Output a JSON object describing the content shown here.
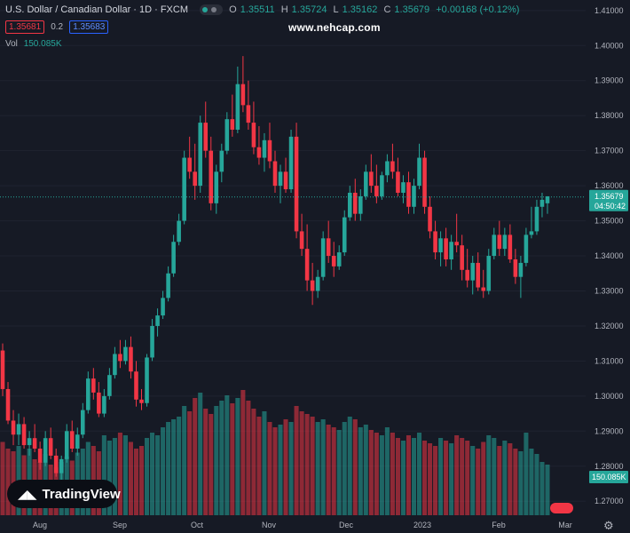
{
  "header": {
    "symbol": "U.S. Dollar / Canadian Dollar · 1D · FXCM",
    "o_label": "O",
    "o": "1.35511",
    "h_label": "H",
    "h": "1.35724",
    "l_label": "L",
    "l": "1.35162",
    "c_label": "C",
    "c": "1.35679",
    "change": "+0.00168 (+0.12%)",
    "bid": "1.35681",
    "spread": "0.2",
    "ask": "1.35683"
  },
  "volume_legend": {
    "label": "Vol",
    "value": "150.085K"
  },
  "watermark": "www.nehcap.com",
  "logo": "TradingView",
  "colors": {
    "up": "#26a69a",
    "down": "#f23645",
    "background": "#161a25",
    "text": "#b2b5be"
  },
  "chart_data": {
    "type": "candlestick",
    "y_ticks": [
      "1.41000",
      "1.40000",
      "1.39000",
      "1.38000",
      "1.37000",
      "1.36000",
      "1.35000",
      "1.34000",
      "1.33000",
      "1.32000",
      "1.31000",
      "1.30000",
      "1.29000",
      "1.28000",
      "1.27000"
    ],
    "ylim": [
      1.266,
      1.413
    ],
    "x_ticks": [
      "Aug",
      "Sep",
      "Oct",
      "Nov",
      "Dec",
      "2023",
      "Feb",
      "Mar"
    ],
    "current_price": "1.35679",
    "countdown": "04:50:42",
    "volume_label": "150.085K",
    "candles": [
      [
        1.313,
        1.315,
        1.3,
        1.302
      ],
      [
        1.302,
        1.304,
        1.292,
        1.293
      ],
      [
        1.293,
        1.296,
        1.286,
        1.289
      ],
      [
        1.289,
        1.295,
        1.286,
        1.292
      ],
      [
        1.292,
        1.294,
        1.285,
        1.286
      ],
      [
        1.286,
        1.29,
        1.283,
        1.288
      ],
      [
        1.288,
        1.292,
        1.284,
        1.285
      ],
      [
        1.285,
        1.287,
        1.279,
        1.281
      ],
      [
        1.281,
        1.29,
        1.28,
        1.288
      ],
      [
        1.288,
        1.291,
        1.282,
        1.283
      ],
      [
        1.283,
        1.285,
        1.277,
        1.278
      ],
      [
        1.278,
        1.283,
        1.276,
        1.282
      ],
      [
        1.282,
        1.292,
        1.281,
        1.29
      ],
      [
        1.29,
        1.293,
        1.284,
        1.285
      ],
      [
        1.285,
        1.291,
        1.283,
        1.289
      ],
      [
        1.289,
        1.298,
        1.288,
        1.296
      ],
      [
        1.296,
        1.307,
        1.295,
        1.305
      ],
      [
        1.305,
        1.308,
        1.299,
        1.301
      ],
      [
        1.301,
        1.304,
        1.294,
        1.295
      ],
      [
        1.295,
        1.302,
        1.294,
        1.3
      ],
      [
        1.3,
        1.308,
        1.299,
        1.306
      ],
      [
        1.306,
        1.314,
        1.305,
        1.312
      ],
      [
        1.312,
        1.316,
        1.308,
        1.31
      ],
      [
        1.31,
        1.316,
        1.309,
        1.314
      ],
      [
        1.314,
        1.317,
        1.305,
        1.307
      ],
      [
        1.307,
        1.31,
        1.297,
        1.299
      ],
      [
        1.299,
        1.302,
        1.296,
        1.298
      ],
      [
        1.298,
        1.312,
        1.297,
        1.311
      ],
      [
        1.311,
        1.322,
        1.31,
        1.32
      ],
      [
        1.32,
        1.325,
        1.317,
        1.323
      ],
      [
        1.323,
        1.33,
        1.322,
        1.328
      ],
      [
        1.328,
        1.337,
        1.327,
        1.335
      ],
      [
        1.335,
        1.346,
        1.334,
        1.344
      ],
      [
        1.344,
        1.352,
        1.343,
        1.35
      ],
      [
        1.35,
        1.37,
        1.349,
        1.368
      ],
      [
        1.368,
        1.374,
        1.362,
        1.364
      ],
      [
        1.364,
        1.372,
        1.356,
        1.36
      ],
      [
        1.36,
        1.38,
        1.358,
        1.378
      ],
      [
        1.378,
        1.384,
        1.368,
        1.37
      ],
      [
        1.37,
        1.374,
        1.353,
        1.355
      ],
      [
        1.355,
        1.366,
        1.352,
        1.364
      ],
      [
        1.364,
        1.372,
        1.361,
        1.37
      ],
      [
        1.37,
        1.381,
        1.369,
        1.379
      ],
      [
        1.379,
        1.386,
        1.374,
        1.376
      ],
      [
        1.376,
        1.394,
        1.375,
        1.389
      ],
      [
        1.389,
        1.397,
        1.381,
        1.383
      ],
      [
        1.383,
        1.39,
        1.376,
        1.378
      ],
      [
        1.378,
        1.384,
        1.369,
        1.371
      ],
      [
        1.371,
        1.377,
        1.366,
        1.368
      ],
      [
        1.368,
        1.375,
        1.364,
        1.373
      ],
      [
        1.373,
        1.378,
        1.365,
        1.367
      ],
      [
        1.367,
        1.37,
        1.358,
        1.36
      ],
      [
        1.36,
        1.366,
        1.355,
        1.364
      ],
      [
        1.364,
        1.368,
        1.358,
        1.359
      ],
      [
        1.359,
        1.376,
        1.358,
        1.374
      ],
      [
        1.374,
        1.378,
        1.345,
        1.347
      ],
      [
        1.347,
        1.352,
        1.34,
        1.342
      ],
      [
        1.342,
        1.349,
        1.33,
        1.333
      ],
      [
        1.333,
        1.338,
        1.326,
        1.33
      ],
      [
        1.33,
        1.336,
        1.328,
        1.334
      ],
      [
        1.334,
        1.347,
        1.333,
        1.345
      ],
      [
        1.345,
        1.35,
        1.338,
        1.34
      ],
      [
        1.34,
        1.344,
        1.334,
        1.337
      ],
      [
        1.337,
        1.343,
        1.336,
        1.341
      ],
      [
        1.341,
        1.353,
        1.34,
        1.351
      ],
      [
        1.351,
        1.36,
        1.35,
        1.358
      ],
      [
        1.358,
        1.362,
        1.35,
        1.352
      ],
      [
        1.352,
        1.359,
        1.35,
        1.357
      ],
      [
        1.357,
        1.366,
        1.356,
        1.364
      ],
      [
        1.364,
        1.369,
        1.358,
        1.36
      ],
      [
        1.36,
        1.366,
        1.355,
        1.357
      ],
      [
        1.357,
        1.364,
        1.356,
        1.363
      ],
      [
        1.363,
        1.369,
        1.361,
        1.367
      ],
      [
        1.367,
        1.372,
        1.362,
        1.364
      ],
      [
        1.364,
        1.368,
        1.357,
        1.358
      ],
      [
        1.358,
        1.363,
        1.355,
        1.361
      ],
      [
        1.361,
        1.364,
        1.352,
        1.354
      ],
      [
        1.354,
        1.362,
        1.352,
        1.36
      ],
      [
        1.36,
        1.372,
        1.359,
        1.368
      ],
      [
        1.368,
        1.37,
        1.352,
        1.354
      ],
      [
        1.354,
        1.357,
        1.345,
        1.347
      ],
      [
        1.347,
        1.35,
        1.339,
        1.341
      ],
      [
        1.341,
        1.347,
        1.337,
        1.345
      ],
      [
        1.345,
        1.348,
        1.337,
        1.339
      ],
      [
        1.339,
        1.346,
        1.336,
        1.344
      ],
      [
        1.344,
        1.352,
        1.341,
        1.343
      ],
      [
        1.343,
        1.346,
        1.333,
        1.336
      ],
      [
        1.336,
        1.342,
        1.331,
        1.333
      ],
      [
        1.333,
        1.34,
        1.329,
        1.338
      ],
      [
        1.338,
        1.341,
        1.33,
        1.331
      ],
      [
        1.331,
        1.336,
        1.328,
        1.33
      ],
      [
        1.33,
        1.342,
        1.329,
        1.34
      ],
      [
        1.34,
        1.348,
        1.339,
        1.346
      ],
      [
        1.346,
        1.35,
        1.34,
        1.342
      ],
      [
        1.342,
        1.348,
        1.34,
        1.346
      ],
      [
        1.346,
        1.349,
        1.338,
        1.339
      ],
      [
        1.339,
        1.342,
        1.332,
        1.334
      ],
      [
        1.334,
        1.34,
        1.328,
        1.338
      ],
      [
        1.338,
        1.348,
        1.337,
        1.346
      ],
      [
        1.346,
        1.354,
        1.345,
        1.347
      ],
      [
        1.347,
        1.356,
        1.346,
        1.354
      ],
      [
        1.354,
        1.358,
        1.351,
        1.356
      ],
      [
        1.355,
        1.357,
        1.352,
        1.357
      ]
    ],
    "volumes": [
      0.55,
      0.5,
      0.48,
      0.52,
      0.45,
      0.5,
      0.42,
      0.4,
      0.46,
      0.38,
      0.36,
      0.4,
      0.44,
      0.41,
      0.47,
      0.5,
      0.55,
      0.52,
      0.48,
      0.6,
      0.56,
      0.58,
      0.62,
      0.6,
      0.55,
      0.5,
      0.52,
      0.58,
      0.62,
      0.6,
      0.66,
      0.7,
      0.72,
      0.74,
      0.82,
      0.78,
      0.88,
      0.92,
      0.8,
      0.76,
      0.82,
      0.86,
      0.9,
      0.84,
      0.88,
      0.94,
      0.86,
      0.8,
      0.74,
      0.78,
      0.7,
      0.66,
      0.68,
      0.72,
      0.7,
      0.82,
      0.78,
      0.76,
      0.74,
      0.7,
      0.72,
      0.68,
      0.66,
      0.64,
      0.7,
      0.74,
      0.72,
      0.66,
      0.68,
      0.64,
      0.62,
      0.6,
      0.66,
      0.62,
      0.58,
      0.56,
      0.6,
      0.58,
      0.62,
      0.56,
      0.54,
      0.52,
      0.58,
      0.56,
      0.54,
      0.6,
      0.58,
      0.56,
      0.52,
      0.5,
      0.55,
      0.6,
      0.58,
      0.52,
      0.56,
      0.54,
      0.5,
      0.48,
      0.62,
      0.5,
      0.46,
      0.4,
      0.38
    ]
  }
}
